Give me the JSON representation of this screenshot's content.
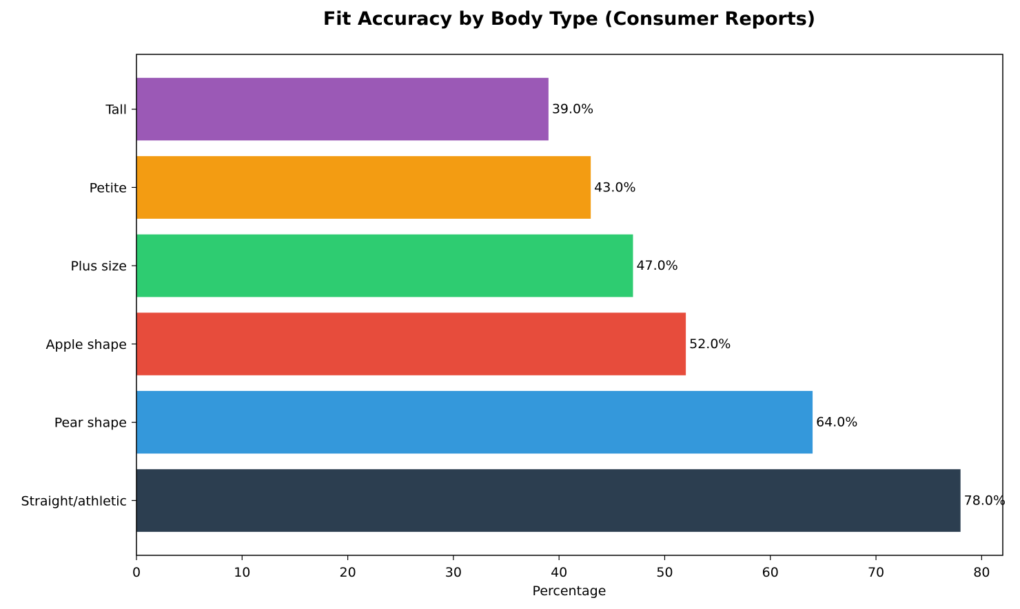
{
  "chart_data": {
    "type": "bar",
    "orientation": "horizontal",
    "title": "Fit Accuracy by Body Type (Consumer Reports)",
    "xlabel": "Percentage",
    "ylabel": "",
    "xlim": [
      0,
      82
    ],
    "xticks": [
      0,
      10,
      20,
      30,
      40,
      50,
      60,
      70,
      80
    ],
    "grid": false,
    "legend": "none",
    "categories": [
      "Straight/athletic",
      "Pear shape",
      "Apple shape",
      "Plus size",
      "Petite",
      "Tall"
    ],
    "values": [
      78.0,
      64.0,
      52.0,
      47.0,
      43.0,
      39.0
    ],
    "value_labels": [
      "78.0%",
      "64.0%",
      "52.0%",
      "47.0%",
      "43.0%",
      "39.0%"
    ],
    "colors": [
      "#2c3e50",
      "#3498db",
      "#e74c3c",
      "#2ecc71",
      "#f39c12",
      "#9b59b6"
    ]
  }
}
